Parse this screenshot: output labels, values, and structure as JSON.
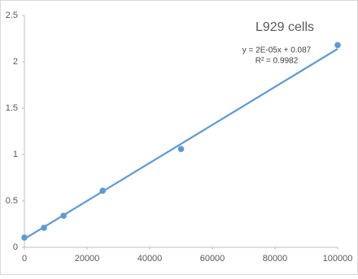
{
  "chart_data": {
    "type": "scatter",
    "title": "L929  cells",
    "annotations": [
      "y = 2E-05x + 0.087",
      "R² = 0.9982"
    ],
    "series": [
      {
        "color": "#5b9bd5",
        "x": [
          0,
          6250,
          12500,
          25000,
          50000,
          100000
        ],
        "values": [
          0.105,
          0.21,
          0.34,
          0.61,
          1.06,
          2.18
        ]
      }
    ],
    "trendline": {
      "color": "#5b9bd5",
      "x": [
        0,
        100000
      ],
      "values": [
        0.09,
        2.14
      ]
    },
    "xlim": [
      0,
      100000
    ],
    "xticks": [
      0,
      20000,
      40000,
      60000,
      80000,
      100000
    ],
    "ylim": [
      0,
      2.5
    ],
    "yticks": [
      0,
      0.5,
      1,
      1.5,
      2,
      2.5
    ],
    "grid": false
  }
}
